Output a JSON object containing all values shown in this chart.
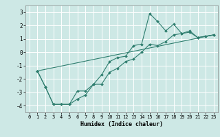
{
  "xlabel": "Humidex (Indice chaleur)",
  "ylabel": "",
  "background_color": "#cde8e5",
  "grid_color": "#ffffff",
  "line_color": "#2e7d6e",
  "xlim": [
    -0.5,
    23.5
  ],
  "ylim": [
    -4.5,
    3.5
  ],
  "xticks": [
    0,
    1,
    2,
    3,
    4,
    5,
    6,
    7,
    8,
    9,
    10,
    11,
    12,
    13,
    14,
    15,
    16,
    17,
    18,
    19,
    20,
    21,
    22,
    23
  ],
  "yticks": [
    -4,
    -3,
    -2,
    -1,
    0,
    1,
    2,
    3
  ],
  "line1_x": [
    1,
    2,
    3,
    4,
    5,
    6,
    7,
    8,
    9,
    10,
    11,
    12,
    13,
    14,
    15,
    16,
    17,
    18,
    19,
    20,
    21,
    22,
    23
  ],
  "line1_y": [
    -1.4,
    -2.6,
    -3.9,
    -3.9,
    -3.9,
    -2.9,
    -2.9,
    -2.4,
    -1.7,
    -0.7,
    -0.4,
    -0.3,
    0.5,
    0.6,
    2.9,
    2.3,
    1.6,
    2.1,
    1.4,
    1.6,
    1.1,
    1.2,
    1.3
  ],
  "line2_x": [
    1,
    2,
    3,
    4,
    5,
    6,
    7,
    8,
    9,
    10,
    11,
    12,
    13,
    14,
    15,
    16,
    17,
    18,
    19,
    20,
    21,
    22,
    23
  ],
  "line2_y": [
    -1.4,
    -2.6,
    -3.9,
    -3.9,
    -3.9,
    -3.5,
    -3.2,
    -2.4,
    -2.4,
    -1.5,
    -1.2,
    -0.7,
    -0.5,
    0.0,
    0.6,
    0.5,
    0.8,
    1.3,
    1.4,
    1.5,
    1.1,
    1.2,
    1.3
  ],
  "line3_x": [
    1,
    23
  ],
  "line3_y": [
    -1.4,
    1.3
  ],
  "font_family": "monospace"
}
